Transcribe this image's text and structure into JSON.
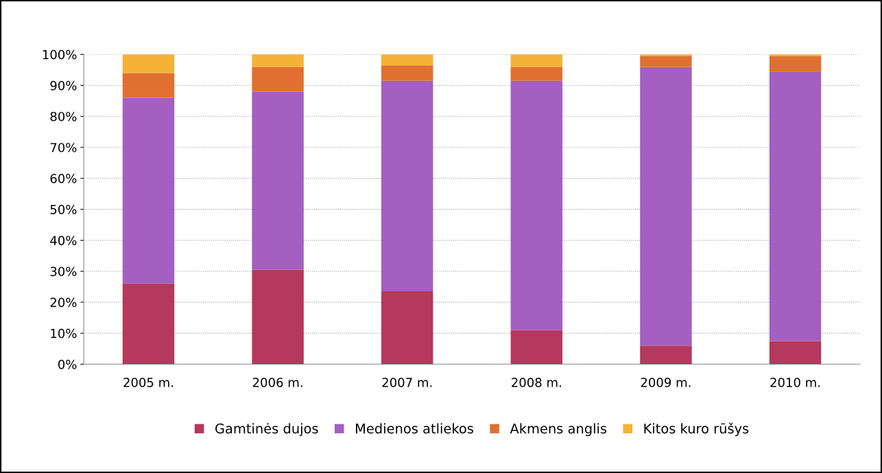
{
  "chart_data": {
    "type": "bar",
    "stacked": true,
    "categories": [
      "2005 m.",
      "2006 m.",
      "2007 m.",
      "2008 m.",
      "2009 m.",
      "2010 m."
    ],
    "series": [
      {
        "name": "Gamtinės dujos",
        "color": "#b5385e",
        "values": [
          26,
          30.5,
          23.5,
          11,
          6,
          7.5
        ]
      },
      {
        "name": "Medienos atliekos",
        "color": "#a45fc0",
        "values": [
          60,
          57.5,
          68,
          80.5,
          90,
          87
        ]
      },
      {
        "name": "Akmens anglis",
        "color": "#e07030",
        "values": [
          8,
          8,
          5,
          4.5,
          3.5,
          5
        ]
      },
      {
        "name": "Kitos kuro rūšys",
        "color": "#f5b335",
        "values": [
          6,
          4,
          3.5,
          4,
          0.5,
          0.5
        ]
      }
    ],
    "ylim": [
      0,
      100
    ],
    "yticks": [
      {
        "value": 0,
        "label": "0%"
      },
      {
        "value": 10,
        "label": "10%"
      },
      {
        "value": 20,
        "label": "20%"
      },
      {
        "value": 30,
        "label": "30%"
      },
      {
        "value": 40,
        "label": "40%"
      },
      {
        "value": 50,
        "label": "50%"
      },
      {
        "value": 60,
        "label": "60%"
      },
      {
        "value": 70,
        "label": "70%"
      },
      {
        "value": 80,
        "label": "80%"
      },
      {
        "value": 90,
        "label": "90%"
      },
      {
        "value": 100,
        "label": "100%"
      }
    ],
    "grid": "y",
    "legend": "bottom"
  }
}
